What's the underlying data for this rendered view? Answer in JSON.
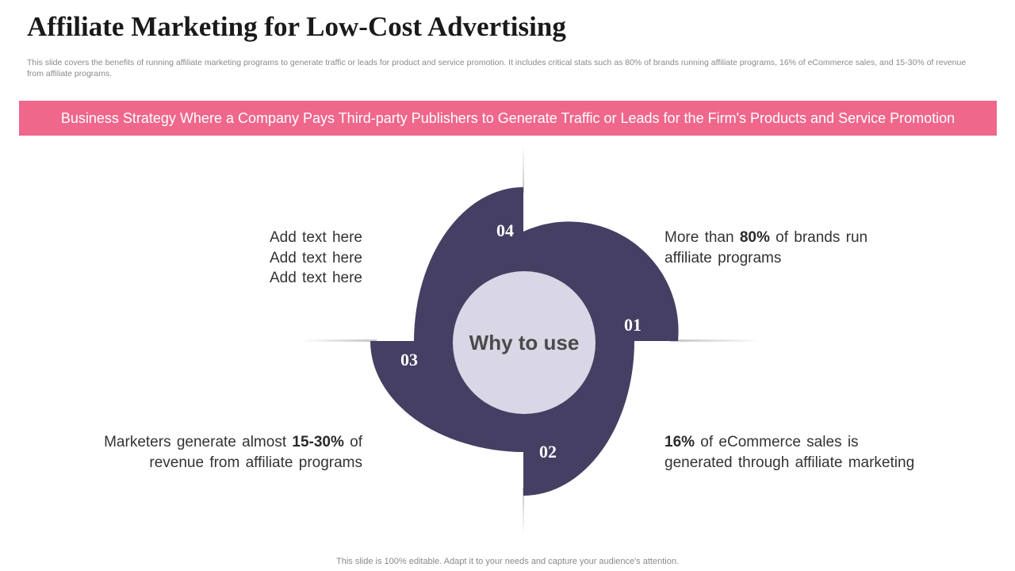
{
  "title": "Affiliate Marketing for Low-Cost Advertising",
  "subtitle": "This slide covers the benefits of running affiliate marketing programs to generate traffic or leads for product and service promotion. It includes critical stats such as 80% of brands running affiliate programs, 16% of eCommerce sales, and 15-30% of revenue from affiliate programs.",
  "banner": "Business Strategy Where a Company Pays Third-party Publishers to Generate Traffic or Leads for the Firm's Products and Service Promotion",
  "center_label": "Why to use",
  "segments": [
    {
      "number": "01",
      "pre": "More than ",
      "bold": "80%",
      "post": " of brands run",
      "line2": "affiliate programs"
    },
    {
      "number": "02",
      "bold": "16%",
      "post": " of eCommerce  sales is",
      "line2": "generated  through  affiliate marketing"
    },
    {
      "number": "03",
      "pre": "Marketers generate almost ",
      "bold": "15-30%",
      "post": " of",
      "line2": "revenue from affiliate programs"
    },
    {
      "number": "04",
      "lines": [
        "Add  text here",
        "Add  text here",
        "Add  text here"
      ]
    }
  ],
  "footer": "This slide is 100% editable. Adapt it to your needs and capture your audience's attention.",
  "colors": {
    "banner": "#f0678c",
    "segment": "#453f63",
    "center": "#d9d6e6"
  }
}
